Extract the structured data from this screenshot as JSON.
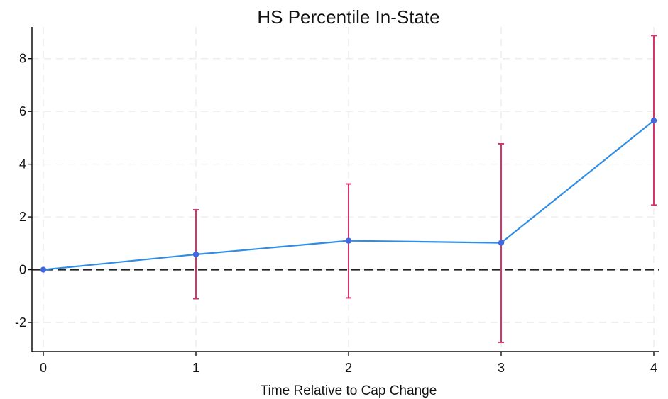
{
  "chart_data": {
    "type": "line",
    "title": "HS Percentile In-State",
    "xlabel": "Time Relative to Cap Change",
    "ylabel": "",
    "xlim": [
      0,
      4
    ],
    "ylim": [
      -3.1,
      9.2
    ],
    "x_ticks": [
      "0",
      "1",
      "2",
      "3",
      "4"
    ],
    "y_ticks": [
      "-2",
      "0",
      "2",
      "4",
      "6",
      "8"
    ],
    "grid": true,
    "reference_line": {
      "y": 0,
      "style": "dashed",
      "color": "#222222"
    },
    "colors": {
      "line": "#2f8de4",
      "point": "#4169e1",
      "error_bar": "#d6336c",
      "grid": "#ececec"
    },
    "series": [
      {
        "x": [
          0,
          1,
          2,
          3,
          4
        ],
        "y": [
          0,
          0.58,
          1.1,
          1.02,
          5.65
        ],
        "ci_low": [
          0,
          -1.1,
          -1.07,
          -2.75,
          2.45
        ],
        "ci_high": [
          0,
          2.27,
          3.25,
          4.77,
          8.87
        ]
      }
    ]
  }
}
